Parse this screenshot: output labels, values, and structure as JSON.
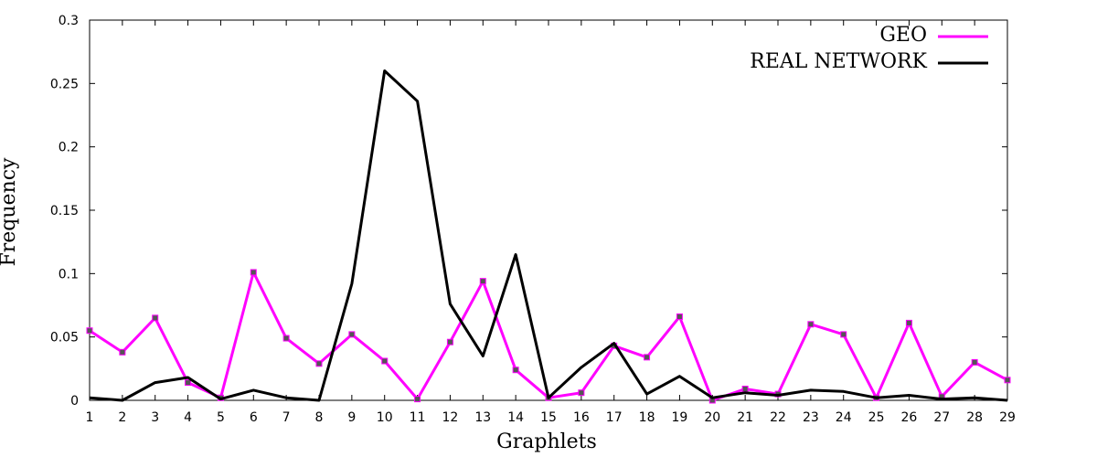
{
  "chart_data": {
    "type": "line",
    "title": "",
    "xlabel": "Graphlets",
    "ylabel": "Frequency",
    "xlim": [
      1,
      29
    ],
    "ylim": [
      0,
      0.3
    ],
    "x": [
      1,
      2,
      3,
      4,
      5,
      6,
      7,
      8,
      9,
      10,
      11,
      12,
      13,
      14,
      15,
      16,
      17,
      18,
      19,
      20,
      21,
      22,
      23,
      24,
      25,
      26,
      27,
      28,
      29
    ],
    "y_ticks": [
      "0",
      "0.05",
      "0.1",
      "0.15",
      "0.2",
      "0.25",
      "0.3"
    ],
    "y_tick_values": [
      0,
      0.05,
      0.1,
      0.15,
      0.2,
      0.25,
      0.3
    ],
    "x_ticks": [
      "1",
      "2",
      "3",
      "4",
      "5",
      "6",
      "7",
      "8",
      "9",
      "10",
      "11",
      "12",
      "13",
      "14",
      "15",
      "16",
      "17",
      "18",
      "19",
      "20",
      "21",
      "22",
      "23",
      "24",
      "25",
      "26",
      "27",
      "28",
      "29"
    ],
    "grid": false,
    "legend_position": "top-right",
    "series": [
      {
        "name": "GEO",
        "color": "#ff00ff",
        "markers": true,
        "values": [
          0.055,
          0.038,
          0.065,
          0.014,
          0.002,
          0.101,
          0.049,
          0.029,
          0.052,
          0.031,
          0.001,
          0.046,
          0.094,
          0.024,
          0.002,
          0.006,
          0.043,
          0.034,
          0.066,
          0.0,
          0.009,
          0.005,
          0.06,
          0.052,
          0.002,
          0.061,
          0.003,
          0.03,
          0.016
        ]
      },
      {
        "name": "REAL NETWORK",
        "color": "#000000",
        "markers": false,
        "values": [
          0.002,
          0.0,
          0.014,
          0.018,
          0.001,
          0.008,
          0.002,
          0.0,
          0.092,
          0.26,
          0.236,
          0.076,
          0.035,
          0.115,
          0.002,
          0.026,
          0.045,
          0.005,
          0.019,
          0.002,
          0.006,
          0.004,
          0.008,
          0.007,
          0.002,
          0.004,
          0.001,
          0.002,
          0.0
        ]
      }
    ]
  }
}
